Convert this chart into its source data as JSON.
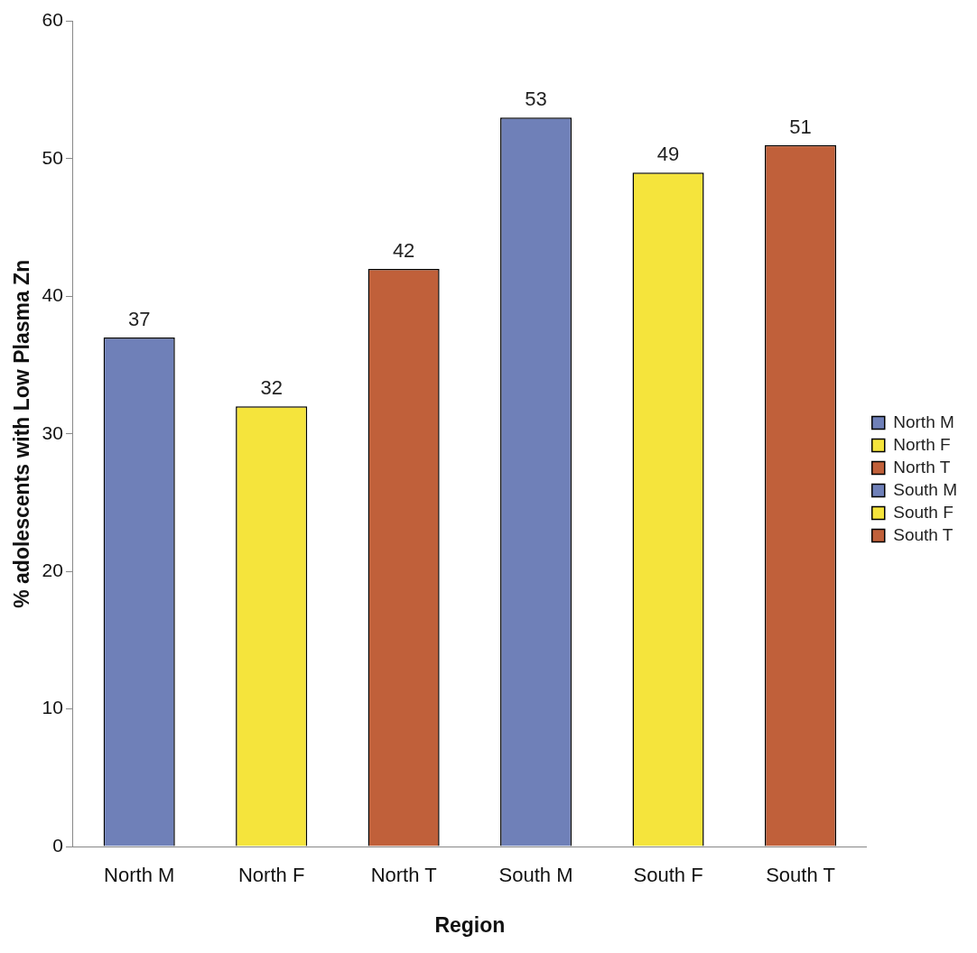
{
  "chart_data": {
    "type": "bar",
    "xlabel": "Region",
    "ylabel": "% adolescents with Low Plasma Zn",
    "categories": [
      "North M",
      "North F",
      "North T",
      "South M",
      "South F",
      "South T"
    ],
    "series": [
      {
        "name": "North M",
        "color": "#6f80b8",
        "values": [
          37,
          null,
          null,
          null,
          null,
          null
        ]
      },
      {
        "name": "North F",
        "color": "#f5e43c",
        "values": [
          null,
          32,
          null,
          null,
          null,
          null
        ]
      },
      {
        "name": "North T",
        "color": "#c0603a",
        "values": [
          null,
          null,
          42,
          null,
          null,
          null
        ]
      },
      {
        "name": "South M",
        "color": "#6f80b8",
        "values": [
          null,
          null,
          null,
          53,
          null,
          null
        ]
      },
      {
        "name": "South F",
        "color": "#f5e43c",
        "values": [
          null,
          null,
          null,
          null,
          49,
          null
        ]
      },
      {
        "name": "South T",
        "color": "#c0603a",
        "values": [
          null,
          null,
          null,
          null,
          null,
          51
        ]
      }
    ],
    "ylim": [
      0,
      60
    ],
    "yticks": [
      0,
      10,
      20,
      30,
      40,
      50,
      60
    ],
    "grid": false,
    "legend": "right",
    "data_labels": true
  }
}
